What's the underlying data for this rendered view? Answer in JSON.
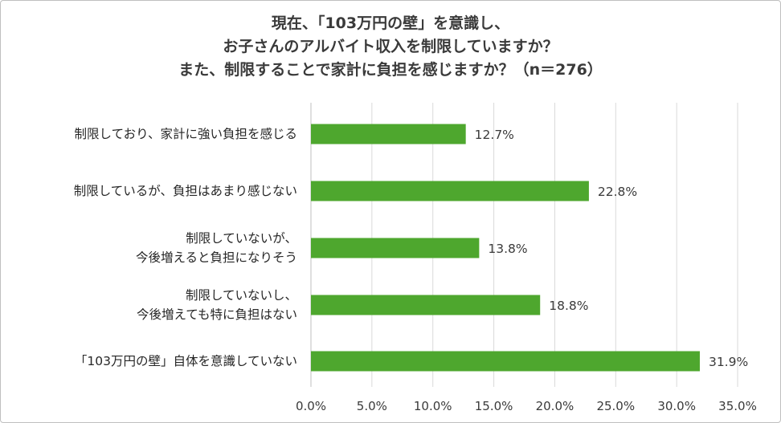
{
  "chart_data": {
    "type": "bar",
    "orientation": "horizontal",
    "title_lines": [
      "現在、「103万円の壁」を意識し、",
      "お子さんのアルバイト収入を制限していますか？",
      "また、制限することで家計に負担を感じますか？（n＝276）"
    ],
    "categories": [
      [
        "制限しており、家計に強い負担を感じる"
      ],
      [
        "制限しているが、負担はあまり感じない"
      ],
      [
        "制限していないが、",
        "今後増えると負担になりそう"
      ],
      [
        "制限していないし、",
        "今後増えても特に負担はない"
      ],
      [
        "「103万円の壁」自体を意識していない"
      ]
    ],
    "values": [
      12.7,
      22.8,
      13.8,
      18.8,
      31.9
    ],
    "value_labels": [
      "12.7%",
      "22.8%",
      "13.8%",
      "18.8%",
      "31.9%"
    ],
    "xlim": [
      0,
      35
    ],
    "xticks": [
      "0.0%",
      "5.0%",
      "10.0%",
      "15.0%",
      "20.0%",
      "25.0%",
      "30.0%",
      "35.0%"
    ],
    "grid": true,
    "colors": {
      "bar": "#4ea72e",
      "grid": "#d9d9d9"
    }
  }
}
